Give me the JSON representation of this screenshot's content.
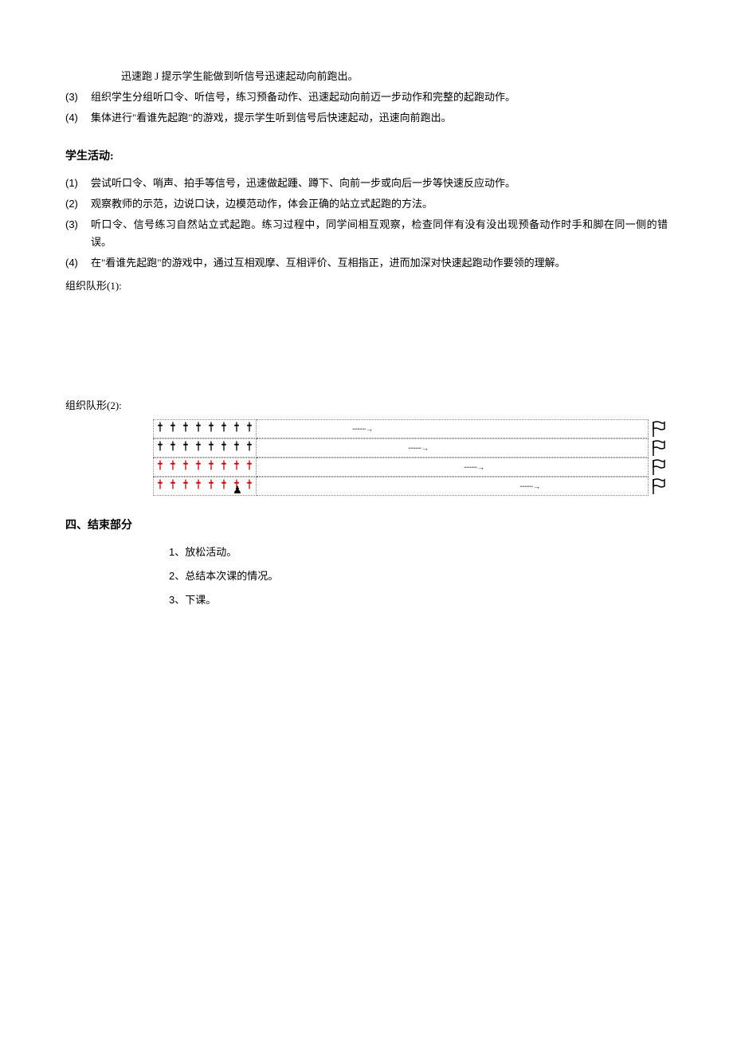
{
  "continuation": "迅速跑 J 提示学生能做到听信号迅速起动向前跑出。",
  "topList": [
    {
      "num": "(3)",
      "text": "组织学生分组听口令、听信号，练习预备动作、迅速起动向前迈一步动作和完整的起跑动作。"
    },
    {
      "num": "(4)",
      "text": "集体进行\"看谁先起跑\"的游戏，提示学生听到信号后快速起动，迅速向前跑出。"
    }
  ],
  "section1": {
    "heading": "学生活动:",
    "items": [
      {
        "num": "(1)",
        "text": "尝试听口令、哨声、拍手等信号，迅速做起踵、蹲下、向前一步或向后一步等快速反应动作。"
      },
      {
        "num": "(2)",
        "text": "观察教师的示范，边说口诀，边模范动作，体会正确的站立式起跑的方法。"
      },
      {
        "num": "(3)",
        "text": "听口令、信号练习自然站立式起跑。练习过程中，同学间相互观察，检查同伴有没有没出现预备动作时手和脚在同一侧的错误。"
      },
      {
        "num": "(4)",
        "text": "在\"看谁先起跑\"的游戏中，通过互相观摩、互相评价、互相指正，进而加深对快速起跑动作要领的理解。"
      }
    ]
  },
  "formation1Label": "组织队形(1):",
  "formation2Label": "组织队形(2):",
  "formation": {
    "rows": [
      {
        "color": "black",
        "count": 8,
        "arrowLeft": 120,
        "teacher": false
      },
      {
        "color": "black",
        "count": 8,
        "arrowLeft": 190,
        "teacher": false
      },
      {
        "color": "red",
        "count": 8,
        "arrowLeft": 260,
        "teacher": false
      },
      {
        "color": "red",
        "count": 8,
        "arrowLeft": 330,
        "teacher": true
      }
    ],
    "arrowGlyph": "∙∙∙∙∙∙∙∙∙∙∙→"
  },
  "section2": {
    "heading": "四、结束部分",
    "items": [
      {
        "num": "1、",
        "text": "放松活动。"
      },
      {
        "num": "2、",
        "text": "总结本次课的情况。"
      },
      {
        "num": "3、",
        "text": "下课。"
      }
    ]
  }
}
